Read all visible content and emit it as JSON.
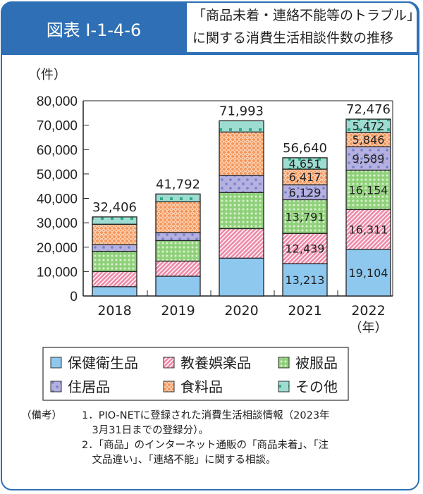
{
  "header": {
    "figure_label": "図表 I-1-4-6",
    "title_line1": "「商品未着・連絡不能等のトラブル」",
    "title_line2": "に関する消費生活相談件数の推移"
  },
  "chart_data": {
    "type": "bar",
    "stacked": true,
    "ylabel": "（件）",
    "xlabel": "（年）",
    "ylim": [
      0,
      80000
    ],
    "yticks": [
      "0",
      "10,000",
      "20,000",
      "30,000",
      "40,000",
      "50,000",
      "60,000",
      "70,000",
      "80,000"
    ],
    "categories": [
      "2018",
      "2019",
      "2020",
      "2021",
      "2022"
    ],
    "totals": [
      "32,406",
      "41,792",
      "71,993",
      "56,640",
      "72,476"
    ],
    "series": [
      {
        "name": "保健衛生品",
        "color": "#8ec8ef",
        "pattern": "solid",
        "values": [
          3800,
          8100,
          15500,
          13213,
          19104
        ],
        "labels": [
          "",
          "",
          "",
          "13,213",
          "19,104"
        ]
      },
      {
        "name": "教養娯楽品",
        "color": "#ef8aa8",
        "pattern": "stripes",
        "values": [
          6200,
          6200,
          12100,
          12439,
          16311
        ],
        "labels": [
          "",
          "",
          "",
          "12,439",
          "16,311"
        ]
      },
      {
        "name": "被服品",
        "color": "#8fd07a",
        "pattern": "diamonds",
        "values": [
          8300,
          8400,
          14800,
          13791,
          16154
        ],
        "labels": [
          "",
          "",
          "",
          "13,791",
          "16,154"
        ]
      },
      {
        "name": "住居品",
        "color": "#b6b0e0",
        "pattern": "dots",
        "values": [
          2700,
          3300,
          7000,
          6129,
          9589
        ],
        "labels": [
          "",
          "",
          "",
          "6,129",
          "9,589"
        ]
      },
      {
        "name": "食料品",
        "color": "#f5965c",
        "pattern": "lattice",
        "values": [
          8400,
          12600,
          17800,
          6417,
          5846
        ],
        "labels": [
          "",
          "",
          "",
          "6,417",
          "5,846"
        ]
      },
      {
        "name": "その他",
        "color": "#9edcd2",
        "pattern": "squares",
        "values": [
          3000,
          3200,
          4600,
          4651,
          5472
        ],
        "labels": [
          "",
          "",
          "",
          "4,651",
          "5,472"
        ]
      }
    ],
    "legend": "bottom",
    "grid": false
  },
  "notes": {
    "label": "（備考）",
    "items": [
      "1．PIO-NETに登録された消費生活相談情報（2023年",
      "　3月31日までの登録分）。",
      "2．「商品」のインターネット通販の「商品未着」、「注",
      "　文品違い」、「連絡不能」に関する相談。"
    ]
  }
}
